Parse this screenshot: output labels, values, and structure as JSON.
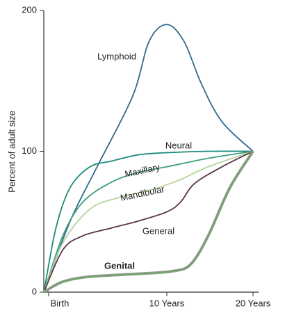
{
  "chart_data": {
    "type": "line",
    "y_label": "Percent of adult size",
    "xlim": [
      -0.4,
      20
    ],
    "ylim": [
      0,
      200
    ],
    "xticks": [
      {
        "value": 0,
        "label": "Birth"
      },
      {
        "value": 10,
        "label": "10 Years"
      },
      {
        "value": 20,
        "label": "20 Years"
      }
    ],
    "yticks": [
      0,
      100,
      200
    ],
    "series": [
      {
        "name": "Lymphoid",
        "color": "#2f6b8f",
        "x": [
          -0.4,
          1.8,
          4.1,
          7.1,
          8.5,
          10,
          12,
          14,
          16.4,
          20
        ],
        "values": [
          0,
          50,
          89,
          139,
          178,
          190,
          178,
          148,
          121,
          100
        ]
      },
      {
        "name": "Neural",
        "color": "#1e8a7a",
        "x": [
          -0.4,
          0.6,
          1.8,
          3.5,
          5.3,
          7.6,
          10,
          14.8,
          20
        ],
        "values": [
          0,
          45,
          74,
          89,
          93,
          97.5,
          99,
          100,
          100
        ]
      },
      {
        "name": "Maxillary",
        "color": "#3a9f7c",
        "x": [
          -0.4,
          1.2,
          2.9,
          5.3,
          7.6,
          10,
          14.8,
          20
        ],
        "values": [
          0,
          40,
          64,
          78,
          85,
          89,
          95,
          100
        ]
      },
      {
        "name": "Mandibular",
        "color": "#b4d49a",
        "x": [
          -0.4,
          1.2,
          3.5,
          5.9,
          8.8,
          11.6,
          14.8,
          20
        ],
        "values": [
          0,
          35,
          59,
          67,
          73,
          80,
          89,
          100
        ]
      },
      {
        "name": "General",
        "color": "#5a3346",
        "x": [
          -0.4,
          1.2,
          2.9,
          5.3,
          7.6,
          10,
          11.6,
          13.2,
          16.4,
          20
        ],
        "values": [
          0,
          30,
          40,
          45.5,
          50.5,
          57,
          64,
          77,
          89,
          100
        ]
      },
      {
        "name": "Genital",
        "color": "#6aa860",
        "x": [
          -0.4,
          1.2,
          3.5,
          7.6,
          10.8,
          12.8,
          14.8,
          17.3,
          20
        ],
        "values": [
          0,
          7.4,
          11,
          13,
          15,
          20,
          40,
          74,
          100
        ]
      }
    ]
  }
}
